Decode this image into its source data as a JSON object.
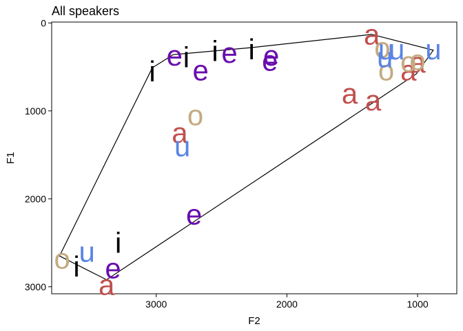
{
  "chart_data": {
    "type": "scatter",
    "title": "All speakers",
    "xlabel": "F2",
    "ylabel": "F1",
    "xlim": [
      3800,
      700
    ],
    "ylim": [
      3080,
      -10
    ],
    "x_reversed": true,
    "y_reversed": true,
    "x_ticks": [
      3000,
      2000,
      1000
    ],
    "y_ticks": [
      0,
      1000,
      2000,
      3000
    ],
    "grid": false,
    "legend": "none",
    "colors": {
      "a": "#c0504d",
      "e": "#6a0dad",
      "i": "#000000",
      "o": "#c4aa82",
      "u": "#5b84e4"
    },
    "points": [
      {
        "label": "a",
        "x": 1350,
        "y": 130
      },
      {
        "label": "a",
        "x": 1000,
        "y": 450
      },
      {
        "label": "a",
        "x": 1070,
        "y": 540
      },
      {
        "label": "a",
        "x": 1520,
        "y": 800
      },
      {
        "label": "a",
        "x": 1340,
        "y": 880
      },
      {
        "label": "a",
        "x": 2820,
        "y": 1250
      },
      {
        "label": "a",
        "x": 3380,
        "y": 2980
      },
      {
        "label": "e",
        "x": 2860,
        "y": 370
      },
      {
        "label": "e",
        "x": 2440,
        "y": 340
      },
      {
        "label": "e",
        "x": 2660,
        "y": 540
      },
      {
        "label": "e",
        "x": 2120,
        "y": 370
      },
      {
        "label": "e",
        "x": 2130,
        "y": 430
      },
      {
        "label": "e",
        "x": 2710,
        "y": 2180
      },
      {
        "label": "e",
        "x": 3330,
        "y": 2790
      },
      {
        "label": "i",
        "x": 3030,
        "y": 550
      },
      {
        "label": "i",
        "x": 2770,
        "y": 390
      },
      {
        "label": "i",
        "x": 2550,
        "y": 320
      },
      {
        "label": "i",
        "x": 2270,
        "y": 300
      },
      {
        "label": "i",
        "x": 3290,
        "y": 2500
      },
      {
        "label": "i",
        "x": 3610,
        "y": 2770
      },
      {
        "label": "o",
        "x": 1270,
        "y": 280
      },
      {
        "label": "o",
        "x": 1000,
        "y": 420
      },
      {
        "label": "o",
        "x": 1070,
        "y": 440
      },
      {
        "label": "o",
        "x": 1240,
        "y": 540
      },
      {
        "label": "o",
        "x": 2700,
        "y": 1050
      },
      {
        "label": "o",
        "x": 3720,
        "y": 2680
      },
      {
        "label": "u",
        "x": 1240,
        "y": 300
      },
      {
        "label": "u",
        "x": 1160,
        "y": 300
      },
      {
        "label": "u",
        "x": 880,
        "y": 300
      },
      {
        "label": "u",
        "x": 1250,
        "y": 390
      },
      {
        "label": "u",
        "x": 2800,
        "y": 1400
      },
      {
        "label": "u",
        "x": 3530,
        "y": 2600
      }
    ],
    "hull": [
      {
        "x": 1350,
        "y": 130
      },
      {
        "x": 880,
        "y": 310
      },
      {
        "x": 1010,
        "y": 580
      },
      {
        "x": 3380,
        "y": 2920
      },
      {
        "x": 3740,
        "y": 2650
      },
      {
        "x": 3030,
        "y": 510
      },
      {
        "x": 2870,
        "y": 360
      },
      {
        "x": 2270,
        "y": 280
      }
    ]
  }
}
